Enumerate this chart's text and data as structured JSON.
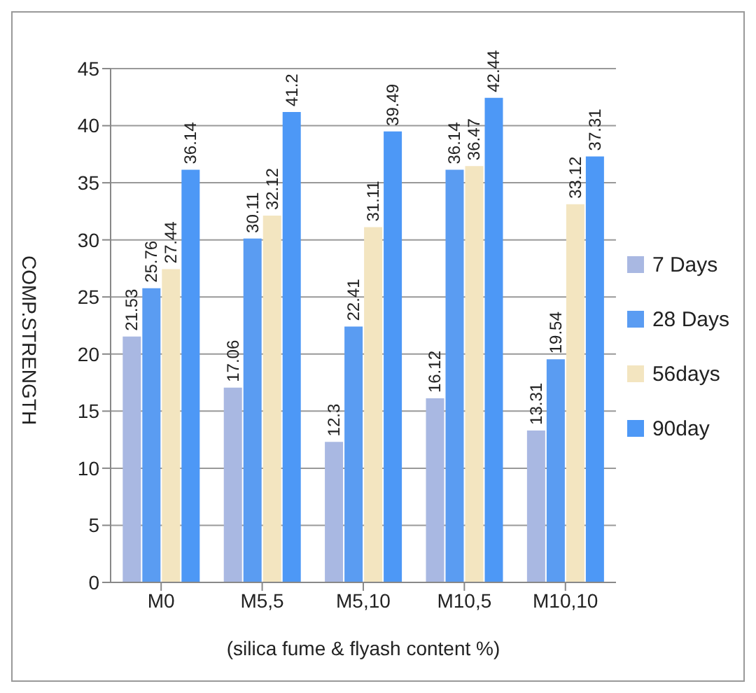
{
  "chart_data": {
    "type": "bar",
    "xlabel": "(silica fume & flyash content %)",
    "ylabel": "COMP.STRENGTH",
    "categories": [
      "M0",
      "M5,5",
      "M5,10",
      "M10,5",
      "M10,10"
    ],
    "series": [
      {
        "name": "7 Days",
        "color": "#a9b8e2",
        "values": [
          21.53,
          17.06,
          12.3,
          16.12,
          13.31
        ]
      },
      {
        "name": "28 Days",
        "color": "#5a9cf2",
        "values": [
          25.76,
          30.11,
          22.41,
          36.14,
          19.54
        ]
      },
      {
        "name": "56days",
        "color": "#f3e5c0",
        "values": [
          27.44,
          32.12,
          31.11,
          36.47,
          33.12
        ]
      },
      {
        "name": "90day",
        "color": "#4d98f6",
        "values": [
          36.14,
          41.2,
          39.49,
          42.44,
          37.31
        ]
      }
    ],
    "ylim": [
      0,
      45
    ],
    "yticks": [
      0,
      5,
      10,
      15,
      20,
      25,
      30,
      35,
      40,
      45
    ],
    "grid": "y",
    "legend": "right",
    "data_labels": true
  }
}
